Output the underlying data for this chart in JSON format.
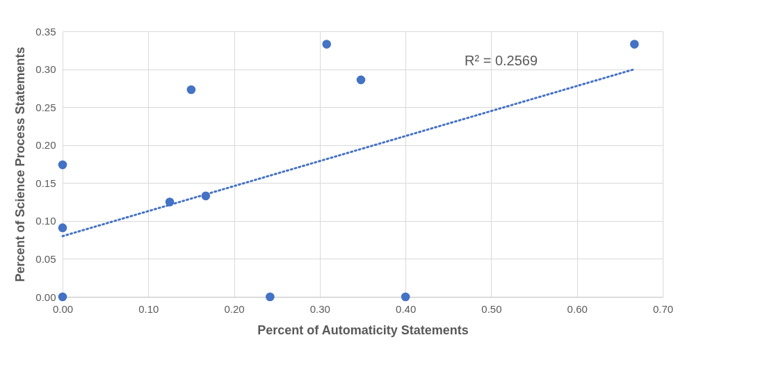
{
  "chart_data": {
    "type": "scatter",
    "xlabel": "Percent of Automaticity Statements",
    "ylabel": "Percent of Science Process Statements",
    "xlim": [
      0,
      0.7
    ],
    "xticks": [
      {
        "value": 0,
        "label": "0.00"
      },
      {
        "value": 0.1,
        "label": "0.10"
      },
      {
        "value": 0.2,
        "label": "0.20"
      },
      {
        "value": 0.3,
        "label": "0.30"
      },
      {
        "value": 0.4,
        "label": "0.40"
      },
      {
        "value": 0.5,
        "label": "0.50"
      },
      {
        "value": 0.6,
        "label": "0.60"
      },
      {
        "value": 0.7,
        "label": "0.70"
      }
    ],
    "ylim": [
      0,
      0.35
    ],
    "yticks": [
      {
        "value": 0,
        "label": "0.00"
      },
      {
        "value": 0.05,
        "label": "0.05"
      },
      {
        "value": 0.1,
        "label": "0.10"
      },
      {
        "value": 0.15,
        "label": "0.15"
      },
      {
        "value": 0.2,
        "label": "0.20"
      },
      {
        "value": 0.25,
        "label": "0.25"
      },
      {
        "value": 0.3,
        "label": "0.30"
      },
      {
        "value": 0.35,
        "label": "0.35"
      }
    ],
    "grid": true,
    "series": [
      {
        "marker": "circle",
        "color": "#4472c4",
        "x": [
          0,
          0,
          0,
          0.125,
          0.15,
          0.167,
          0.242,
          0.308,
          0.348,
          0.4,
          0.667
        ],
        "values": [
          0,
          0.091,
          0.174,
          0.125,
          0.273,
          0.133,
          0,
          0.333,
          0.286,
          0,
          0.333
        ]
      },
      {
        "type": "line",
        "color": "#4472c4",
        "line_style": "dotted",
        "x": [
          0,
          0.667
        ],
        "values": [
          0.08,
          0.3
        ]
      }
    ],
    "annotations": [
      "R² = 0.2569"
    ]
  }
}
